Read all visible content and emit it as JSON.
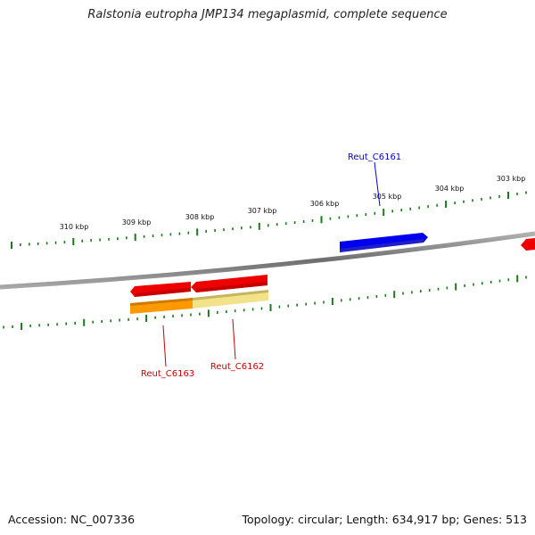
{
  "title": "Ralstonia eutropha JMP134 megaplasmid, complete sequence",
  "footer": {
    "accession": "Accession: NC_007336",
    "summary": "Topology: circular; Length: 634,917 bp; Genes: 513"
  },
  "scale_labels": [
    "310 kbp",
    "309 kbp",
    "308 kbp",
    "307 kbp",
    "306 kbp",
    "305 kbp",
    "304 kbp",
    "303 kbp"
  ],
  "genes": [
    {
      "name": "Reut_C6161",
      "label_color": "#0000cc",
      "color": "#0000ee",
      "strand": "forward"
    },
    {
      "name": "Reut_C6162",
      "label_color": "#cc0000",
      "color": "#ee0000",
      "strand": "reverse"
    },
    {
      "name": "Reut_C6163",
      "label_color": "#cc0000",
      "color": "#ee0000",
      "strand": "reverse"
    }
  ],
  "colors": {
    "tick": "#1a7a1a",
    "backbone": "#8a8a8a",
    "partial_feature_orange": "#ff9900",
    "partial_feature_yellow": "#f2e28a"
  }
}
